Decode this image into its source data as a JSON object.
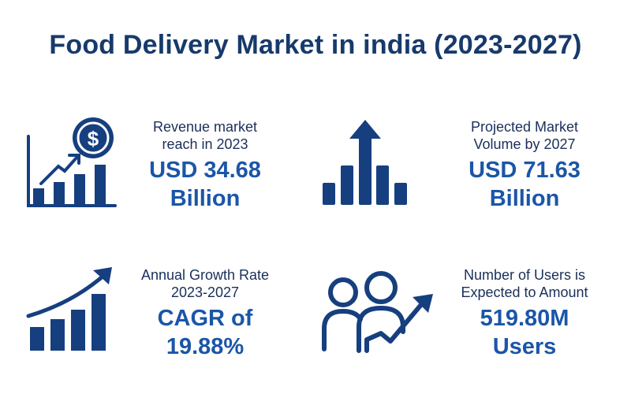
{
  "title": "Food Delivery Market in india (2023-2027)",
  "colors": {
    "dark_navy": "#173a6b",
    "accent_blue": "#1a56a8",
    "icon_blue": "#163f7f"
  },
  "stats": [
    {
      "label_line1": "Revenue market",
      "label_line2": "reach in 2023",
      "value_line1": "USD 34.68",
      "value_line2": "Billion",
      "icon": "revenue-growth-dollar-icon"
    },
    {
      "label_line1": "Projected Market",
      "label_line2": "Volume by 2027",
      "value_line1": "USD 71.63",
      "value_line2": "Billion",
      "icon": "bar-chart-up-arrow-icon"
    },
    {
      "label_line1": "Annual Growth Rate",
      "label_line2": "2023-2027",
      "value_line1": "CAGR of",
      "value_line2": "19.88%",
      "icon": "growth-chart-icon"
    },
    {
      "label_line1": "Number of Users is",
      "label_line2": "Expected to Amount",
      "value_line1": "519.80M",
      "value_line2": "Users",
      "icon": "users-growth-icon"
    }
  ]
}
